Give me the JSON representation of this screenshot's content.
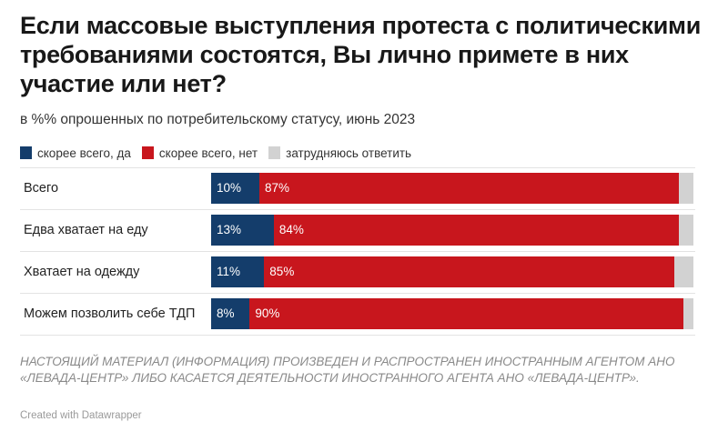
{
  "title": "Если массовые выступления протеста с политическими требованиями состоятся, Вы лично примете в них участие или нет?",
  "subtitle": "в %% опрошенных по потребительскому статусу, июнь 2023",
  "colors": {
    "yes": "#143d6b",
    "no": "#c8161d",
    "undecided": "#d2d2d2"
  },
  "legend": [
    {
      "label": "скорее всего, да",
      "color": "#143d6b"
    },
    {
      "label": "скорее всего, нет",
      "color": "#c8161d"
    },
    {
      "label": "затрудняюсь ответить",
      "color": "#d2d2d2"
    }
  ],
  "chart_data": {
    "type": "bar",
    "orientation": "horizontal",
    "stacked": true,
    "categories": [
      "Всего",
      "Едва хватает на еду",
      "Хватает на одежду",
      "Можем позволить себе ТДП"
    ],
    "series": [
      {
        "name": "скорее всего, да",
        "values": [
          10,
          13,
          11,
          8
        ],
        "labels": [
          "10%",
          "13%",
          "11%",
          "8%"
        ]
      },
      {
        "name": "скорее всего, нет",
        "values": [
          87,
          84,
          85,
          90
        ],
        "labels": [
          "87%",
          "84%",
          "85%",
          "90%"
        ]
      },
      {
        "name": "затрудняюсь ответить",
        "values": [
          3,
          3,
          4,
          2
        ],
        "labels": [
          "",
          "",
          "",
          ""
        ]
      }
    ],
    "xlim": [
      0,
      100
    ]
  },
  "footnote": "НАСТОЯЩИЙ МАТЕРИАЛ (ИНФОРМАЦИЯ) ПРОИЗВЕДЕН И РАСПРОСТРАНЕН ИНОСТРАННЫМ АГЕНТОМ АНО «ЛЕВАДА-ЦЕНТР» ЛИБО КАСАЕТСЯ ДЕЯТЕЛЬНОСТИ ИНОСТРАННОГО АГЕНТА АНО «ЛЕВАДА-ЦЕНТР».",
  "credit": "Created with Datawrapper"
}
